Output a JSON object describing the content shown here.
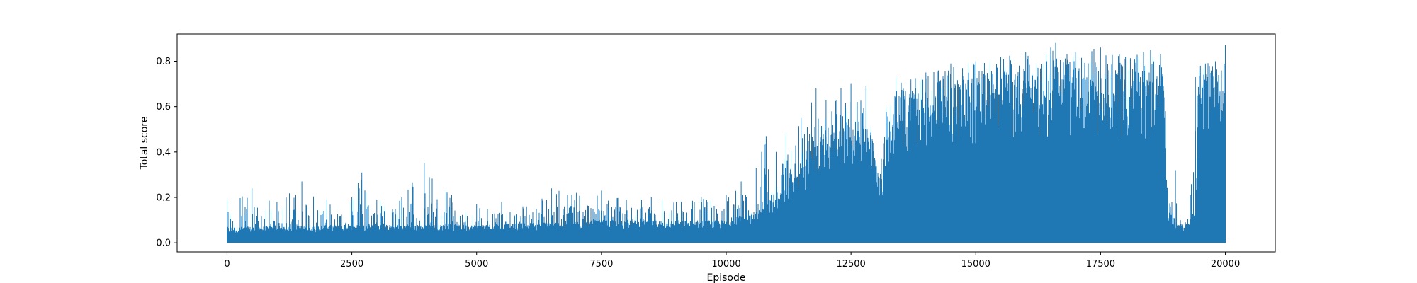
{
  "chart_data": {
    "type": "line",
    "title": "",
    "xlabel": "Episode",
    "ylabel": "Total score",
    "xlim": [
      -1000,
      21000
    ],
    "ylim": [
      -0.04,
      0.92
    ],
    "xticks": [
      0,
      2500,
      5000,
      7500,
      10000,
      12500,
      15000,
      17500,
      20000
    ],
    "yticks": [
      0.0,
      0.2,
      0.4,
      0.6,
      0.8
    ],
    "grid": false,
    "legend": "none",
    "series": [
      {
        "color": "#1f77b4",
        "x_range": [
          0,
          20000
        ],
        "min_value": 0.0,
        "upper_envelope": {
          "x": [
            0,
            500,
            1000,
            1500,
            2000,
            2500,
            2700,
            3000,
            3500,
            3950,
            4500,
            5000,
            5500,
            6000,
            6500,
            7000,
            7500,
            8000,
            8500,
            9000,
            9500,
            10000,
            10300,
            10600,
            10800,
            11000,
            11200,
            11500,
            11800,
            12000,
            12300,
            12500,
            12800,
            12950,
            13050,
            13200,
            13400,
            13700,
            14000,
            14500,
            15000,
            15500,
            16000,
            16500,
            16600,
            17000,
            17500,
            18000,
            18500,
            18700,
            18800,
            18900,
            19000,
            19100,
            19200,
            19300,
            19400,
            19500,
            19600,
            19800,
            20000
          ],
          "y": [
            0.19,
            0.24,
            0.18,
            0.27,
            0.19,
            0.2,
            0.31,
            0.19,
            0.2,
            0.35,
            0.21,
            0.17,
            0.18,
            0.16,
            0.24,
            0.22,
            0.23,
            0.19,
            0.2,
            0.18,
            0.2,
            0.21,
            0.27,
            0.33,
            0.47,
            0.4,
            0.48,
            0.55,
            0.68,
            0.63,
            0.68,
            0.7,
            0.69,
            0.44,
            0.25,
            0.6,
            0.73,
            0.72,
            0.75,
            0.79,
            0.8,
            0.82,
            0.84,
            0.86,
            0.88,
            0.84,
            0.86,
            0.82,
            0.85,
            0.83,
            0.58,
            0.16,
            0.32,
            0.1,
            0.09,
            0.21,
            0.73,
            0.78,
            0.79,
            0.8,
            0.87
          ]
        },
        "typical_envelope": {
          "x": [
            0,
            2500,
            5000,
            7500,
            10000,
            10600,
            11000,
            11400,
            11800,
            12300,
            12800,
            13000,
            13100,
            13300,
            13700,
            14500,
            15500,
            16500,
            17500,
            18500,
            18750,
            18850,
            19000,
            19200,
            19400,
            19450,
            19600,
            20000
          ],
          "y": [
            0.07,
            0.08,
            0.08,
            0.1,
            0.1,
            0.14,
            0.2,
            0.3,
            0.45,
            0.5,
            0.55,
            0.35,
            0.25,
            0.6,
            0.63,
            0.68,
            0.72,
            0.74,
            0.74,
            0.74,
            0.76,
            0.15,
            0.1,
            0.07,
            0.15,
            0.65,
            0.72,
            0.74
          ]
        }
      }
    ]
  }
}
